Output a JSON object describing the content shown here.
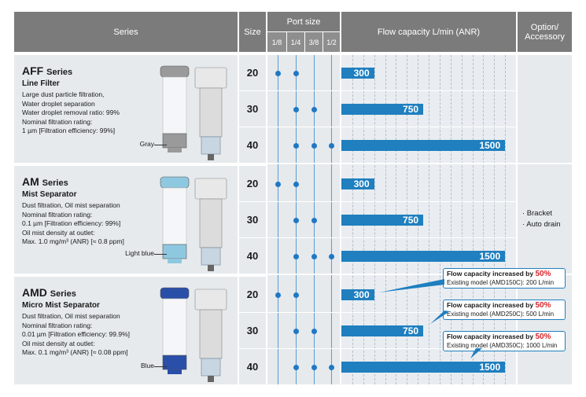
{
  "header": {
    "series": "Series",
    "size": "Size",
    "port_size": "Port size",
    "port_sizes": [
      "1/8",
      "1/4",
      "3/8",
      "1/2"
    ],
    "flow": "Flow capacity L/min (ANR)",
    "option_line1": "Option/",
    "option_line2": "Accessory"
  },
  "series": [
    {
      "name": "AFF",
      "name_suffix": "Series",
      "subtitle": "Line Filter",
      "description": "Large dust particle filtration,\nWater droplet separation\nWater droplet removal ratio: 99%\nNominal filtration rating:\n  1 µm [Filtration efficiency: 99%]",
      "element_color_label": "Gray",
      "element_color": "#9a9a9a",
      "rows": [
        {
          "size": "20",
          "ports": [
            true,
            true,
            false,
            false
          ],
          "flow": 300
        },
        {
          "size": "30",
          "ports": [
            false,
            true,
            true,
            false
          ],
          "flow": 750
        },
        {
          "size": "40",
          "ports": [
            false,
            true,
            true,
            true
          ],
          "flow": 1500
        }
      ]
    },
    {
      "name": "AM",
      "name_suffix": "Series",
      "subtitle": "Mist Separator",
      "description": "Dust filtration, Oil mist separation\nNominal filtration rating:\n0.1 µm [Filtration efficiency: 99%]\nOil mist density at outlet:\nMax. 1.0 mg/m³ (ANR) [≈ 0.8 ppm]",
      "element_color_label": "Light blue",
      "element_color": "#8ec8e0",
      "rows": [
        {
          "size": "20",
          "ports": [
            true,
            true,
            false,
            false
          ],
          "flow": 300
        },
        {
          "size": "30",
          "ports": [
            false,
            true,
            true,
            false
          ],
          "flow": 750
        },
        {
          "size": "40",
          "ports": [
            false,
            true,
            true,
            true
          ],
          "flow": 1500
        }
      ]
    },
    {
      "name": "AMD",
      "name_suffix": "Series",
      "subtitle": "Micro Mist Separator",
      "description": "Dust filtration, Oil mist separation\nNominal filtration rating:\n0.01 µm [Filtration efficiency: 99.9%]\nOil mist density at outlet:\nMax. 0.1 mg/m³ (ANR) [≈ 0.08 ppm]",
      "element_color_label": "Blue",
      "element_color": "#2a4fa8",
      "rows": [
        {
          "size": "20",
          "ports": [
            true,
            true,
            false,
            false
          ],
          "flow": 300
        },
        {
          "size": "30",
          "ports": [
            false,
            true,
            true,
            false
          ],
          "flow": 750
        },
        {
          "size": "40",
          "ports": [
            false,
            true,
            true,
            true
          ],
          "flow": 1500
        }
      ]
    }
  ],
  "flow_max": 1600,
  "options": [
    "· Bracket",
    "· Auto drain"
  ],
  "callouts": [
    {
      "headline": "Flow capacity increased by ",
      "percent": "50%",
      "existing": "Existing model (AMD150C): 200 L/min"
    },
    {
      "headline": "Flow capacity increased by ",
      "percent": "50%",
      "existing": "Existing model (AMD250C): 500 L/min"
    },
    {
      "headline": "Flow capacity increased by ",
      "percent": "50%",
      "existing": "Existing model (AMD350C): 1000 L/min"
    }
  ],
  "colors": {
    "accent": "#1f7fbf",
    "header": "#7b7b7b",
    "row_bg": "#e6eaed"
  }
}
